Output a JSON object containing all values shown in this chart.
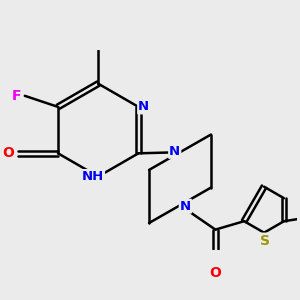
{
  "bg_color": "#ebebeb",
  "atom_colors": {
    "N": "#0000ee",
    "O": "#ff0000",
    "F": "#ee00ee",
    "S": "#999900",
    "C": "#000000"
  },
  "bond_width": 1.8,
  "dbo": 0.055
}
